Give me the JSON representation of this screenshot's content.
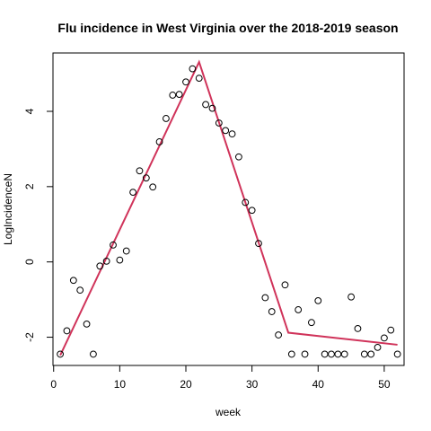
{
  "chart_data": {
    "type": "scatter",
    "title": "Flu incidence in West Virginia over the 2018-2019 season",
    "xlabel": "week",
    "ylabel": "LogIncidenceN",
    "xlim": [
      -0.1,
      53.0
    ],
    "ylim": [
      -2.75,
      5.55
    ],
    "x_ticks": [
      0,
      10,
      20,
      30,
      40,
      50
    ],
    "y_ticks": [
      -2,
      0,
      2,
      4
    ],
    "grid": false,
    "legend": "none",
    "point_color": "#000000",
    "line_color": "#d0335a",
    "points": {
      "x": [
        1,
        2,
        3,
        4,
        5,
        6,
        7,
        8,
        9,
        10,
        11,
        12,
        13,
        14,
        15,
        16,
        17,
        18,
        19,
        20,
        21,
        22,
        23,
        24,
        25,
        26,
        27,
        28,
        29,
        30,
        31,
        32,
        33,
        34,
        35,
        36,
        37,
        38,
        39,
        40,
        41,
        42,
        43,
        44,
        45,
        46,
        47,
        48,
        49,
        50,
        51,
        52
      ],
      "y": [
        -2.45,
        -1.83,
        -0.49,
        -0.75,
        -1.65,
        -2.45,
        -0.11,
        0.02,
        0.45,
        0.05,
        0.29,
        1.85,
        2.42,
        2.23,
        1.99,
        3.19,
        3.81,
        4.43,
        4.45,
        4.78,
        5.13,
        4.88,
        4.18,
        4.08,
        3.69,
        3.49,
        3.4,
        2.79,
        1.58,
        1.37,
        0.49,
        -0.95,
        -1.32,
        -1.94,
        -0.61,
        -2.45,
        -1.27,
        -2.45,
        -1.61,
        -1.03,
        -2.45,
        -2.45,
        -2.45,
        -2.45,
        -0.93,
        -1.77,
        -2.45,
        -2.45,
        -2.27,
        -2.02,
        -1.81,
        -2.45
      ]
    },
    "fit_line": {
      "x": [
        1,
        22,
        35.5,
        52
      ],
      "y": [
        -2.48,
        5.31,
        -1.88,
        -2.2
      ]
    }
  }
}
